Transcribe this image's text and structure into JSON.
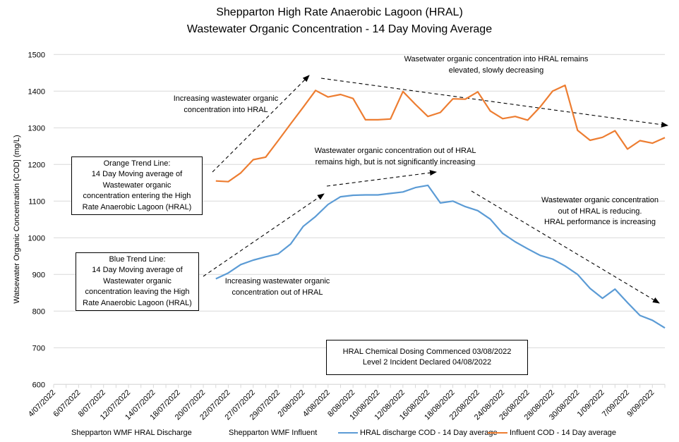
{
  "chart_data": {
    "type": "line",
    "title": "Shepparton High Rate Anaerobic Lagoon (HRAL)",
    "subtitle": "Wastewater Organic Concentration - 14 Day Moving Average",
    "xlabel": "",
    "ylabel": "Watsewater Organic Concentration [COD] (mg/L)",
    "ylim": [
      600,
      1500
    ],
    "yticks": [
      "600",
      "700",
      "800",
      "900",
      "1000",
      "1100",
      "1200",
      "1300",
      "1400",
      "1500"
    ],
    "grid": true,
    "legend_position": "bottom",
    "category_count": 50,
    "tick_labels": [
      "4/07/2022",
      "6/07/2022",
      "8/07/2022",
      "12/07/2022",
      "14/07/2022",
      "18/07/2022",
      "20/07/2022",
      "22/07/2022",
      "27/07/2022",
      "29/07/2022",
      "2/08/2022",
      "4/08/2022",
      "8/08/2022",
      "10/08/2022",
      "12/08/2022",
      "16/08/2022",
      "18/08/2022",
      "22/08/2022",
      "24/08/2022",
      "26/08/2022",
      "28/08/2022",
      "30/08/2022",
      "1/09/2022",
      "7/09/2022",
      "9/09/2022"
    ],
    "series_start_index": 13,
    "series": [
      {
        "name": "HRAL discharge COD - 14 Day average",
        "color": "#5b9bd5",
        "values": [
          888,
          904,
          927,
          939,
          948,
          956,
          983,
          1031,
          1058,
          1091,
          1112,
          1116,
          1117,
          1117,
          1121,
          1125,
          1137,
          1143,
          1095,
          1100,
          1085,
          1074,
          1051,
          1012,
          989,
          970,
          952,
          942,
          923,
          900,
          862,
          835,
          860,
          823,
          788,
          775,
          754
        ]
      },
      {
        "name": "Influent COD - 14 Day average",
        "color": "#ed7d31",
        "values": [
          1155,
          1153,
          1177,
          1213,
          1220,
          1265,
          1311,
          1356,
          1402,
          1384,
          1391,
          1380,
          1322,
          1322,
          1324,
          1399,
          1364,
          1331,
          1342,
          1379,
          1378,
          1398,
          1346,
          1325,
          1331,
          1321,
          1357,
          1400,
          1416,
          1293,
          1266,
          1274,
          1292,
          1242,
          1265,
          1258,
          1273
        ]
      }
    ],
    "legend": [
      {
        "label": "Shepparton WMF HRAL Discharge",
        "swatch": false
      },
      {
        "label": "Shepparton WMF Influent",
        "swatch": false
      },
      {
        "label": "HRAL discharge COD - 14 Day average",
        "swatch": true,
        "color": "#5b9bd5"
      },
      {
        "label": "Influent COD - 14 Day average",
        "swatch": true,
        "color": "#ed7d31"
      }
    ],
    "annotations": {
      "influent_rise": "Increasing wastewater organic\nconcentration into HRAL",
      "influent_plateau": "Wasetwater organic concentration into HRAL remains\nelevated, slowly decreasing",
      "discharge_high": "Wastewater organic concentration out of HRAL\nremains high, but is not significantly increasing",
      "discharge_rise": "Increasing wastewater organic\nconcentration out of HRAL",
      "discharge_reducing": "Wastewater organic concentration\nout of HRAL is reducing.\nHRAL performance is increasing",
      "orange_box": "Orange Trend Line:\n14 Day Moving average of\nWastewater organic\nconcentration entering the High\nRate Anaerobic Lagoon (HRAL)",
      "blue_box": "Blue Trend Line:\n14 Day Moving average of\nWastewater organic\nconcentration leaving the High\nRate Anaerobic Lagoon (HRAL)",
      "dosing_box": "HRAL Chemical Dosing Commenced 03/08/2022\nLevel 2 Incident Declared 04/08/2022"
    }
  }
}
